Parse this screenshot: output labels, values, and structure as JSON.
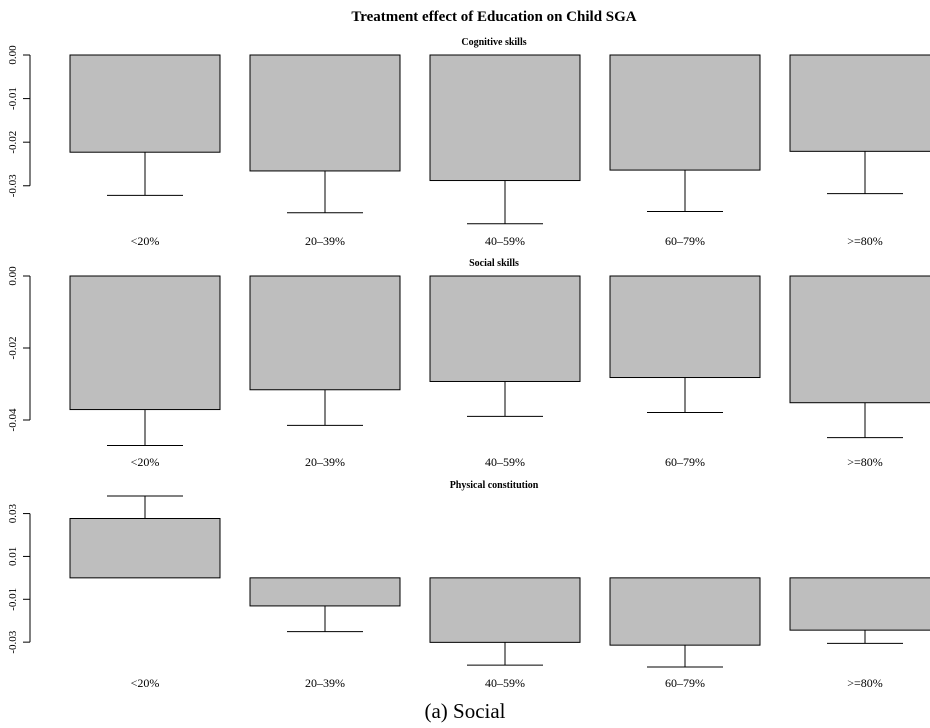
{
  "figure": {
    "title": "Treatment effect of Education on Child SGA",
    "caption": "(a) Social"
  },
  "chart_data": [
    {
      "type": "bar",
      "title": "Cognitive skills",
      "categories": [
        "<20%",
        "20–39%",
        "40–59%",
        "60–79%",
        ">=80%"
      ],
      "values": [
        -0.0223,
        -0.0266,
        -0.0288,
        -0.0264,
        -0.0221
      ],
      "error_end": [
        -0.0322,
        -0.0362,
        -0.0387,
        -0.0359,
        -0.0318
      ],
      "ylim": [
        -0.039,
        0.0
      ],
      "yticks": [
        0.0,
        -0.01,
        -0.02,
        -0.03
      ],
      "ytick_labels": [
        "0.00",
        "-0.01",
        "-0.02",
        "-0.03"
      ],
      "xlabel": "",
      "ylabel": ""
    },
    {
      "type": "bar",
      "title": "Social skills",
      "categories": [
        "<20%",
        "20–39%",
        "40–59%",
        "60–79%",
        ">=80%"
      ],
      "values": [
        -0.0371,
        -0.0316,
        -0.0293,
        -0.0282,
        -0.0352
      ],
      "error_end": [
        -0.0471,
        -0.0415,
        -0.039,
        -0.0379,
        -0.0449
      ],
      "ylim": [
        -0.0475,
        0.0
      ],
      "yticks": [
        0.0,
        -0.02,
        -0.04
      ],
      "ytick_labels": [
        "0.00",
        "-0.02",
        "-0.04"
      ],
      "xlabel": "",
      "ylabel": ""
    },
    {
      "type": "bar",
      "title": "Physical constitution",
      "categories": [
        "<20%",
        "20–39%",
        "40–59%",
        "60–79%",
        ">=80%"
      ],
      "values": [
        0.0277,
        -0.0131,
        -0.0301,
        -0.0314,
        -0.0244
      ],
      "error_end": [
        0.0382,
        -0.0251,
        -0.0407,
        -0.0416,
        -0.0306
      ],
      "ylim": [
        -0.0416,
        0.0382
      ],
      "yticks": [
        0.03,
        0.01,
        -0.01,
        -0.03
      ],
      "ytick_labels": [
        "0.03",
        "0.01",
        "-0.01",
        "-0.03"
      ],
      "xlabel": "",
      "ylabel": ""
    }
  ]
}
